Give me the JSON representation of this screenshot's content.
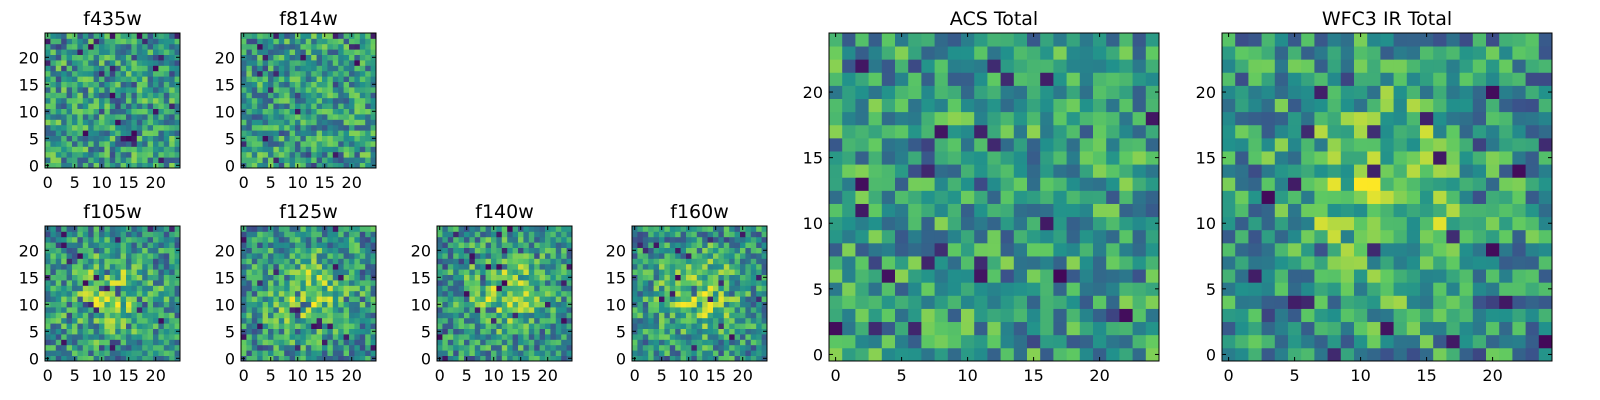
{
  "figure": {
    "background": "#ffffff",
    "colormap": "viridis",
    "colormap_stops": [
      "#440154",
      "#3b528b",
      "#21918c",
      "#5ec962",
      "#fde725"
    ]
  },
  "chart_data": [
    {
      "type": "heatmap",
      "title": "f435w",
      "grid_size": 25,
      "xlim": [
        -0.5,
        24.5
      ],
      "ylim": [
        -0.5,
        24.5
      ],
      "xticks": [
        "0",
        "5",
        "10",
        "15",
        "20"
      ],
      "yticks": [
        "0",
        "5",
        "10",
        "15",
        "20"
      ],
      "texture": "uniform"
    },
    {
      "type": "heatmap",
      "title": "f814w",
      "grid_size": 25,
      "xlim": [
        -0.5,
        24.5
      ],
      "ylim": [
        -0.5,
        24.5
      ],
      "xticks": [
        "0",
        "5",
        "10",
        "15",
        "20"
      ],
      "yticks": [
        "0",
        "5",
        "10",
        "15",
        "20"
      ],
      "texture": "uniform"
    },
    {
      "type": "heatmap",
      "title": "f105w",
      "grid_size": 25,
      "xlim": [
        -0.5,
        24.5
      ],
      "ylim": [
        -0.5,
        24.5
      ],
      "xticks": [
        "0",
        "5",
        "10",
        "15",
        "20"
      ],
      "yticks": [
        "0",
        "5",
        "10",
        "15",
        "20"
      ],
      "texture": "centered"
    },
    {
      "type": "heatmap",
      "title": "f125w",
      "grid_size": 25,
      "xlim": [
        -0.5,
        24.5
      ],
      "ylim": [
        -0.5,
        24.5
      ],
      "xticks": [
        "0",
        "5",
        "10",
        "15",
        "20"
      ],
      "yticks": [
        "0",
        "5",
        "10",
        "15",
        "20"
      ],
      "texture": "centered"
    },
    {
      "type": "heatmap",
      "title": "f140w",
      "grid_size": 25,
      "xlim": [
        -0.5,
        24.5
      ],
      "ylim": [
        -0.5,
        24.5
      ],
      "xticks": [
        "0",
        "5",
        "10",
        "15",
        "20"
      ],
      "yticks": [
        "0",
        "5",
        "10",
        "15",
        "20"
      ],
      "texture": "centered"
    },
    {
      "type": "heatmap",
      "title": "f160w",
      "grid_size": 25,
      "xlim": [
        -0.5,
        24.5
      ],
      "ylim": [
        -0.5,
        24.5
      ],
      "xticks": [
        "0",
        "5",
        "10",
        "15",
        "20"
      ],
      "yticks": [
        "0",
        "5",
        "10",
        "15",
        "20"
      ],
      "texture": "centered"
    },
    {
      "type": "heatmap",
      "title": "ACS Total",
      "grid_size": 25,
      "xlim": [
        -0.5,
        24.5
      ],
      "ylim": [
        -0.5,
        24.5
      ],
      "xticks": [
        "0",
        "5",
        "10",
        "15",
        "20"
      ],
      "yticks": [
        "0",
        "5",
        "10",
        "15",
        "20"
      ],
      "texture": "uniform"
    },
    {
      "type": "heatmap",
      "title": "WFC3 IR Total",
      "grid_size": 25,
      "xlim": [
        -0.5,
        24.5
      ],
      "ylim": [
        -0.5,
        24.5
      ],
      "xticks": [
        "0",
        "5",
        "10",
        "15",
        "20"
      ],
      "yticks": [
        "0",
        "5",
        "10",
        "15",
        "20"
      ],
      "texture": "centered"
    }
  ]
}
